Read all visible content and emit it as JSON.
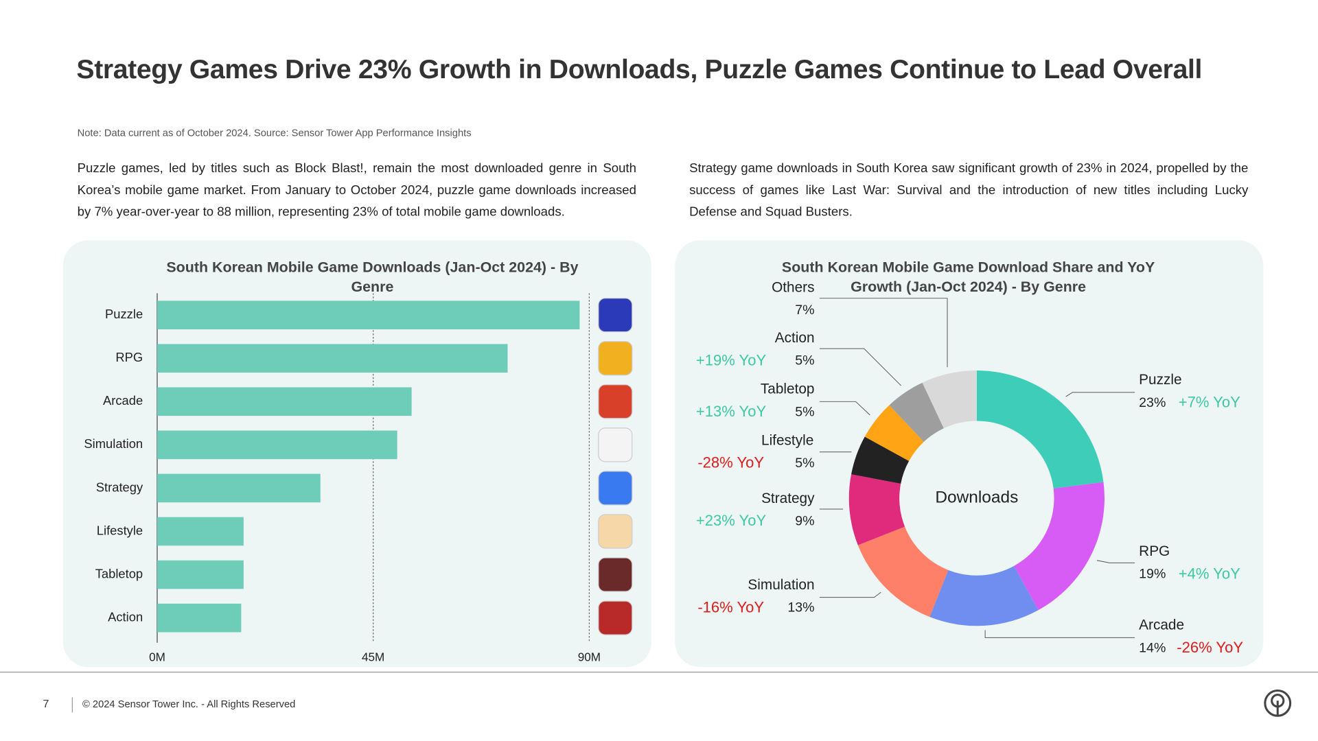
{
  "header": {
    "title": "Strategy Games Drive 23% Growth in Downloads, Puzzle Games Continue to Lead Overall",
    "note": "Note: Data current as of October 2024. Source: Sensor Tower App Performance Insights"
  },
  "paragraphs": [
    "Puzzle games, led by titles such as Block Blast!, remain the most downloaded genre in South Korea’s mobile game market. From January to October 2024, puzzle game downloads increased by 7% year-over-year to 88 million, representing 23% of total mobile game downloads.",
    "Strategy game downloads in South Korea saw significant growth of 23% in 2024, propelled by the success of games like Last War: Survival and the introduction of new titles including Lucky Defense and Squad Busters."
  ],
  "chart_data": [
    {
      "type": "bar",
      "orientation": "horizontal",
      "title": "South Korean Mobile Game Downloads (Jan-Oct 2024) - By Genre",
      "categories": [
        "Puzzle",
        "RPG",
        "Arcade",
        "Simulation",
        "Strategy",
        "Lifestyle",
        "Tabletop",
        "Action"
      ],
      "values": [
        88,
        73,
        53,
        50,
        34,
        18,
        18,
        17.5
      ],
      "color": "#6dcdb8",
      "xlim": [
        0,
        90
      ],
      "xticks": [
        {
          "value": 0,
          "label": "0M"
        },
        {
          "value": 45,
          "label": "45M"
        },
        {
          "value": 90,
          "label": "90M"
        }
      ],
      "grid": true
    },
    {
      "type": "pie",
      "title": "South Korean Mobile Game Download Share and YoY Growth (Jan-Oct 2024) - By Genre",
      "center_label": "Downloads",
      "categories": [
        "Puzzle",
        "RPG",
        "Arcade",
        "Simulation",
        "Strategy",
        "Lifestyle",
        "Tabletop",
        "Action",
        "Others"
      ],
      "values": [
        23,
        19,
        14,
        13,
        9,
        5,
        5,
        5,
        7
      ],
      "value_labels": [
        "23%",
        "19%",
        "14%",
        "13%",
        "9%",
        "5%",
        "5%",
        "5%",
        "7%"
      ],
      "colors": [
        "#3ecdb8",
        "#d65cf5",
        "#6f8ef0",
        "#ff8068",
        "#e02a7c",
        "#222222",
        "#ffa515",
        "#9e9e9e",
        "#d9d9d9"
      ],
      "annotations": [
        "+7% YoY",
        "+4% YoY",
        "-26% YoY",
        "-16% YoY",
        "+23% YoY",
        "-28% YoY",
        "+13% YoY",
        "+19% YoY",
        null
      ],
      "annotation_colors": [
        "#3cc9a2",
        "#3cc9a2",
        "#e01b1b",
        "#e01b1b",
        "#3cc9a2",
        "#e01b1b",
        "#3cc9a2",
        "#3cc9a2",
        null
      ]
    }
  ],
  "footer": {
    "page": 7,
    "copyright": "© 2024 Sensor Tower Inc. - All Rights Reserved"
  }
}
